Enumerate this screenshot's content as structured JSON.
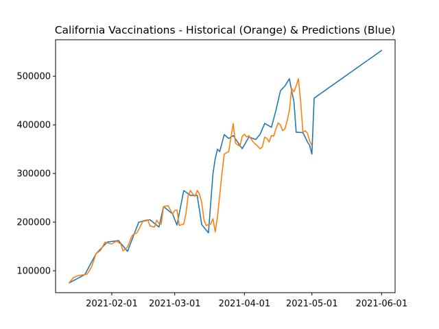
{
  "chart_data": {
    "type": "line",
    "title": "California Vaccinations - Historical (Orange) & Predictions (Blue)",
    "xlabel": "",
    "ylabel": "",
    "x_axis_type": "date",
    "xlim": [
      "2021-01-07",
      "2021-06-07"
    ],
    "ylim": [
      55000,
      575000
    ],
    "x_ticks": [
      "2021-02-01",
      "2021-03-01",
      "2021-04-01",
      "2021-05-01",
      "2021-06-01"
    ],
    "y_ticks": [
      100000,
      200000,
      300000,
      400000,
      500000
    ],
    "grid": false,
    "legend": "none",
    "series": [
      {
        "color": "#1f77b4",
        "x": [
          "2021-01-13",
          "2021-01-20",
          "2021-01-25",
          "2021-01-30",
          "2021-02-04",
          "2021-02-08",
          "2021-02-13",
          "2021-02-18",
          "2021-02-22",
          "2021-02-24",
          "2021-02-28",
          "2021-03-02",
          "2021-03-05",
          "2021-03-08",
          "2021-03-11",
          "2021-03-13",
          "2021-03-16",
          "2021-03-18",
          "2021-03-19",
          "2021-03-20",
          "2021-03-21",
          "2021-03-23",
          "2021-03-25",
          "2021-03-27",
          "2021-03-31",
          "2021-04-03",
          "2021-04-06",
          "2021-04-08",
          "2021-04-10",
          "2021-04-13",
          "2021-04-15",
          "2021-04-17",
          "2021-04-19",
          "2021-04-20",
          "2021-04-21",
          "2021-04-22",
          "2021-04-23",
          "2021-04-24",
          "2021-04-27",
          "2021-04-29",
          "2021-04-30",
          "2021-05-01",
          "2021-05-02",
          "2021-06-01"
        ],
        "values": [
          75000,
          92000,
          135000,
          159000,
          162000,
          140000,
          200000,
          205000,
          190000,
          232000,
          217000,
          194000,
          265000,
          255000,
          255000,
          195000,
          178000,
          300000,
          330000,
          350000,
          345000,
          380000,
          372000,
          378000,
          351000,
          375000,
          370000,
          381000,
          403000,
          395000,
          430000,
          470000,
          480000,
          487000,
          495000,
          470000,
          448000,
          385000,
          384000,
          365000,
          358000,
          340000,
          455000,
          553000
        ]
      },
      {
        "color": "#ff7f0e",
        "x": [
          "2021-01-13",
          "2021-01-15",
          "2021-01-17",
          "2021-01-20",
          "2021-01-21",
          "2021-01-23",
          "2021-01-25",
          "2021-01-27",
          "2021-01-29",
          "2021-01-30",
          "2021-02-01",
          "2021-02-03",
          "2021-02-05",
          "2021-02-06",
          "2021-02-08",
          "2021-02-10",
          "2021-02-11",
          "2021-02-12",
          "2021-02-13",
          "2021-02-15",
          "2021-02-17",
          "2021-02-18",
          "2021-02-20",
          "2021-02-21",
          "2021-02-22",
          "2021-02-23",
          "2021-02-24",
          "2021-02-26",
          "2021-02-28",
          "2021-03-01",
          "2021-03-02",
          "2021-03-03",
          "2021-03-04",
          "2021-03-05",
          "2021-03-06",
          "2021-03-07",
          "2021-03-08",
          "2021-03-09",
          "2021-03-10",
          "2021-03-11",
          "2021-03-12",
          "2021-03-13",
          "2021-03-14",
          "2021-03-15",
          "2021-03-16",
          "2021-03-17",
          "2021-03-18",
          "2021-03-19",
          "2021-03-20",
          "2021-03-21",
          "2021-03-22",
          "2021-03-23",
          "2021-03-25",
          "2021-03-27",
          "2021-03-28",
          "2021-03-30",
          "2021-03-31",
          "2021-04-01",
          "2021-04-02",
          "2021-04-03",
          "2021-04-05",
          "2021-04-06",
          "2021-04-08",
          "2021-04-09",
          "2021-04-10",
          "2021-04-11",
          "2021-04-12",
          "2021-04-13",
          "2021-04-14",
          "2021-04-15",
          "2021-04-16",
          "2021-04-17",
          "2021-04-18",
          "2021-04-19",
          "2021-04-20",
          "2021-04-21",
          "2021-04-22",
          "2021-04-23",
          "2021-04-24",
          "2021-04-25",
          "2021-04-26",
          "2021-04-27",
          "2021-04-28",
          "2021-04-29",
          "2021-04-30",
          "2021-05-01"
        ],
        "values": [
          75000,
          86000,
          90000,
          92000,
          93000,
          108000,
          135000,
          142000,
          159000,
          157000,
          155000,
          161000,
          155000,
          141000,
          149000,
          172000,
          176000,
          177000,
          185000,
          203000,
          205000,
          192000,
          190000,
          204000,
          197000,
          196000,
          232000,
          234000,
          217000,
          224000,
          225000,
          193000,
          195000,
          196000,
          218000,
          255000,
          265000,
          258000,
          253000,
          265000,
          258000,
          240000,
          205000,
          193000,
          195000,
          196000,
          207000,
          180000,
          210000,
          255000,
          300000,
          340000,
          345000,
          403000,
          362000,
          356000,
          376000,
          381000,
          375000,
          378000,
          364000,
          360000,
          351000,
          355000,
          375000,
          372000,
          365000,
          378000,
          377000,
          392000,
          404000,
          400000,
          388000,
          392000,
          408000,
          430000,
          475000,
          468000,
          480000,
          495000,
          448000,
          385000,
          388000,
          383000,
          367000,
          358000
        ]
      }
    ]
  }
}
